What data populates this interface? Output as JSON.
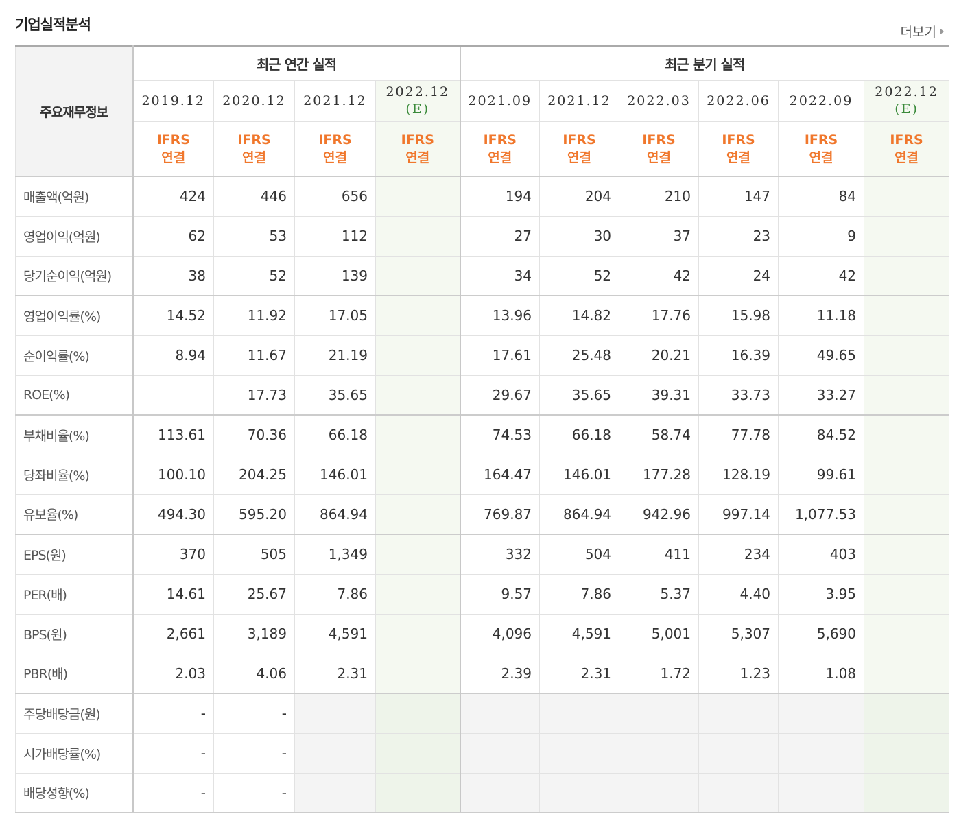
{
  "title": "기업실적분석",
  "more_label": "더보기",
  "header": {
    "label": "주요재무정보",
    "annual_title": "최근 연간 실적",
    "quarter_title": "최근 분기 실적",
    "annual_periods": [
      "2019.12",
      "2020.12",
      "2021.12",
      "2022.12"
    ],
    "quarter_periods": [
      "2021.09",
      "2021.12",
      "2022.03",
      "2022.06",
      "2022.09",
      "2022.12"
    ],
    "estimate_mark": "(E)",
    "ifrs_line1": "IFRS",
    "ifrs_line2": "연결"
  },
  "rows": [
    {
      "label": "매출액(억원)",
      "values": [
        "424",
        "446",
        "656",
        "",
        "194",
        "204",
        "210",
        "147",
        "84",
        ""
      ]
    },
    {
      "label": "영업이익(억원)",
      "values": [
        "62",
        "53",
        "112",
        "",
        "27",
        "30",
        "37",
        "23",
        "9",
        ""
      ]
    },
    {
      "label": "당기순이익(억원)",
      "values": [
        "38",
        "52",
        "139",
        "",
        "34",
        "52",
        "42",
        "24",
        "42",
        ""
      ]
    },
    {
      "label": "영업이익률(%)",
      "values": [
        "14.52",
        "11.92",
        "17.05",
        "",
        "13.96",
        "14.82",
        "17.76",
        "15.98",
        "11.18",
        ""
      ]
    },
    {
      "label": "순이익률(%)",
      "values": [
        "8.94",
        "11.67",
        "21.19",
        "",
        "17.61",
        "25.48",
        "20.21",
        "16.39",
        "49.65",
        ""
      ]
    },
    {
      "label": "ROE(%)",
      "values": [
        "",
        "17.73",
        "35.65",
        "",
        "29.67",
        "35.65",
        "39.31",
        "33.73",
        "33.27",
        ""
      ]
    },
    {
      "label": "부채비율(%)",
      "values": [
        "113.61",
        "70.36",
        "66.18",
        "",
        "74.53",
        "66.18",
        "58.74",
        "77.78",
        "84.52",
        ""
      ]
    },
    {
      "label": "당좌비율(%)",
      "values": [
        "100.10",
        "204.25",
        "146.01",
        "",
        "164.47",
        "146.01",
        "177.28",
        "128.19",
        "99.61",
        ""
      ]
    },
    {
      "label": "유보율(%)",
      "values": [
        "494.30",
        "595.20",
        "864.94",
        "",
        "769.87",
        "864.94",
        "942.96",
        "997.14",
        "1,077.53",
        ""
      ]
    },
    {
      "label": "EPS(원)",
      "values": [
        "370",
        "505",
        "1,349",
        "",
        "332",
        "504",
        "411",
        "234",
        "403",
        ""
      ]
    },
    {
      "label": "PER(배)",
      "values": [
        "14.61",
        "25.67",
        "7.86",
        "",
        "9.57",
        "7.86",
        "5.37",
        "4.40",
        "3.95",
        ""
      ]
    },
    {
      "label": "BPS(원)",
      "values": [
        "2,661",
        "3,189",
        "4,591",
        "",
        "4,096",
        "4,591",
        "5,001",
        "5,307",
        "5,690",
        ""
      ]
    },
    {
      "label": "PBR(배)",
      "values": [
        "2.03",
        "4.06",
        "2.31",
        "",
        "2.39",
        "2.31",
        "1.72",
        "1.23",
        "1.08",
        ""
      ]
    },
    {
      "label": "주당배당금(원)",
      "values": [
        "-",
        "-",
        "",
        "",
        "",
        "",
        "",
        "",
        "",
        ""
      ]
    },
    {
      "label": "시가배당률(%)",
      "values": [
        "-",
        "-",
        "",
        "",
        "",
        "",
        "",
        "",
        "",
        ""
      ]
    },
    {
      "label": "배당성향(%)",
      "values": [
        "-",
        "-",
        "",
        "",
        "",
        "",
        "",
        "",
        "",
        ""
      ]
    }
  ]
}
